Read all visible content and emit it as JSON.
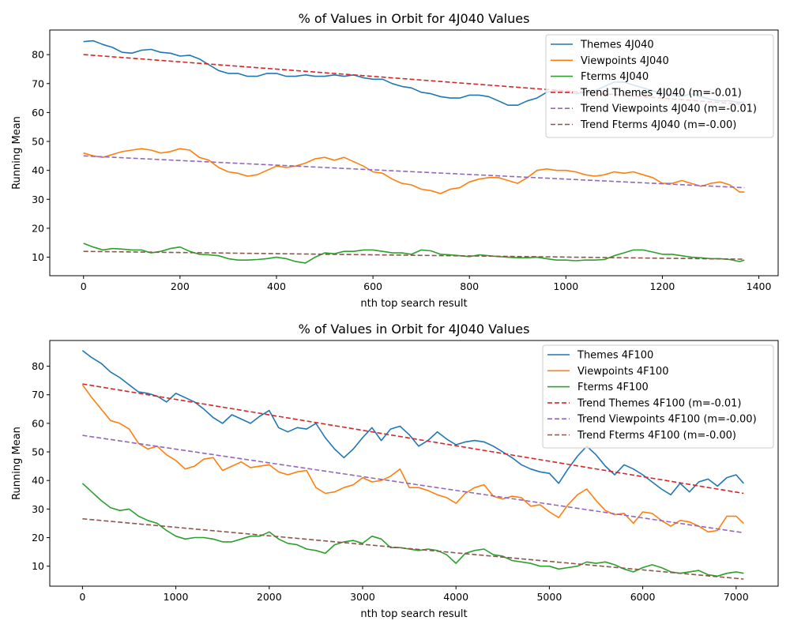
{
  "chart_data": [
    {
      "type": "line",
      "title": "% of Values in Orbit for 4J040 Values",
      "xlabel": "nth top search result",
      "ylabel": "Running Mean",
      "xlim": [
        -70,
        1440
      ],
      "ylim": [
        3.6,
        88.5
      ],
      "xticks": [
        0,
        200,
        400,
        600,
        800,
        1000,
        1200,
        1400
      ],
      "yticks": [
        10,
        20,
        30,
        40,
        50,
        60,
        70,
        80
      ],
      "grid": false,
      "legend_position": "top-right",
      "series": [
        {
          "name": "Themes 4J040",
          "color": "#1f77b4",
          "style": "solid",
          "x": [
            0,
            20,
            40,
            60,
            80,
            100,
            120,
            140,
            160,
            180,
            200,
            220,
            240,
            260,
            280,
            300,
            320,
            340,
            360,
            380,
            400,
            420,
            440,
            460,
            480,
            500,
            520,
            540,
            560,
            580,
            600,
            620,
            640,
            660,
            680,
            700,
            720,
            740,
            760,
            780,
            800,
            820,
            840,
            860,
            880,
            900,
            920,
            940,
            960,
            980,
            1000,
            1020,
            1040,
            1060,
            1080,
            1100,
            1120,
            1140,
            1160,
            1180,
            1200,
            1220,
            1240,
            1260,
            1280,
            1300,
            1320,
            1340,
            1360,
            1370
          ],
          "y": [
            84.5,
            84.8,
            83.5,
            82.5,
            80.8,
            80.5,
            81.5,
            81.8,
            80.8,
            80.5,
            79.5,
            79.8,
            78.5,
            76.5,
            74.5,
            73.5,
            73.5,
            72.5,
            72.5,
            73.5,
            73.5,
            72.5,
            72.5,
            73.0,
            72.5,
            72.5,
            73.0,
            72.5,
            73.0,
            72.0,
            71.5,
            71.5,
            70.0,
            69.0,
            68.5,
            67.0,
            66.5,
            65.5,
            65.0,
            65.0,
            66.0,
            66.0,
            65.5,
            64.0,
            62.5,
            62.5,
            64.0,
            65.0,
            67.0,
            67.5,
            67.0,
            66.5,
            67.0,
            67.5,
            69.0,
            70.5,
            70.5,
            69.5,
            68.5,
            67.5,
            66.5,
            66.0,
            65.5,
            66.5,
            65.5,
            64.5,
            64.0,
            64.0,
            63.5,
            63.5
          ]
        },
        {
          "name": "Viewpoints 4J040",
          "color": "#ff7f0e",
          "style": "solid",
          "x": [
            0,
            20,
            40,
            60,
            80,
            100,
            120,
            140,
            160,
            180,
            200,
            220,
            240,
            260,
            280,
            300,
            320,
            340,
            360,
            380,
            400,
            420,
            440,
            460,
            480,
            500,
            520,
            540,
            560,
            580,
            600,
            620,
            640,
            660,
            680,
            700,
            720,
            740,
            760,
            780,
            800,
            820,
            840,
            860,
            880,
            900,
            920,
            940,
            960,
            980,
            1000,
            1020,
            1040,
            1060,
            1080,
            1100,
            1120,
            1140,
            1160,
            1180,
            1200,
            1220,
            1240,
            1260,
            1280,
            1300,
            1320,
            1340,
            1360,
            1370
          ],
          "y": [
            46.0,
            45.0,
            44.5,
            45.5,
            46.5,
            47.0,
            47.5,
            47.0,
            46.0,
            46.5,
            47.5,
            47.0,
            44.5,
            43.5,
            41.0,
            39.5,
            39.0,
            38.0,
            38.5,
            40.0,
            41.5,
            41.0,
            41.5,
            42.5,
            44.0,
            44.5,
            43.5,
            44.5,
            43.0,
            41.5,
            39.5,
            39.0,
            37.0,
            35.5,
            35.0,
            33.5,
            33.0,
            32.0,
            33.5,
            34.0,
            36.0,
            37.0,
            37.5,
            37.5,
            36.5,
            35.5,
            37.5,
            40.0,
            40.5,
            40.0,
            40.0,
            39.5,
            38.5,
            38.0,
            38.5,
            39.5,
            39.0,
            39.5,
            38.5,
            37.5,
            35.5,
            35.5,
            36.5,
            35.5,
            34.5,
            35.5,
            36.0,
            35.0,
            32.5,
            32.5
          ]
        },
        {
          "name": "Fterms 4J040",
          "color": "#2ca02c",
          "style": "solid",
          "x": [
            0,
            20,
            40,
            60,
            80,
            100,
            120,
            140,
            160,
            180,
            200,
            220,
            240,
            260,
            280,
            300,
            320,
            340,
            360,
            380,
            400,
            420,
            440,
            460,
            480,
            500,
            520,
            540,
            560,
            580,
            600,
            620,
            640,
            660,
            680,
            700,
            720,
            740,
            760,
            780,
            800,
            820,
            840,
            860,
            880,
            900,
            920,
            940,
            960,
            980,
            1000,
            1020,
            1040,
            1060,
            1080,
            1100,
            1120,
            1140,
            1160,
            1180,
            1200,
            1220,
            1240,
            1260,
            1280,
            1300,
            1320,
            1340,
            1360,
            1370
          ],
          "y": [
            14.8,
            13.5,
            12.5,
            13.0,
            12.8,
            12.5,
            12.5,
            11.5,
            12.0,
            13.0,
            13.5,
            12.0,
            11.0,
            10.8,
            10.5,
            9.5,
            9.0,
            9.0,
            9.2,
            9.5,
            10.0,
            9.5,
            8.5,
            8.0,
            10.0,
            11.5,
            11.2,
            12.0,
            12.0,
            12.5,
            12.5,
            12.0,
            11.5,
            11.5,
            11.0,
            12.5,
            12.2,
            11.0,
            10.8,
            10.5,
            10.2,
            10.8,
            10.5,
            10.2,
            10.0,
            9.8,
            9.8,
            10.0,
            9.5,
            9.0,
            9.0,
            8.8,
            9.0,
            9.0,
            9.2,
            10.5,
            11.5,
            12.5,
            12.5,
            11.8,
            11.0,
            11.0,
            10.5,
            10.0,
            9.8,
            9.5,
            9.5,
            9.2,
            8.5,
            9.0
          ]
        },
        {
          "name": "Trend Themes 4J040 (m=-0.01)",
          "color": "#d62728",
          "style": "dashed",
          "x": [
            0,
            1370
          ],
          "y": [
            80.0,
            62.8
          ]
        },
        {
          "name": "Trend Viewpoints 4J040 (m=-0.01)",
          "color": "#9467bd",
          "style": "dashed",
          "x": [
            0,
            1370
          ],
          "y": [
            45.0,
            34.0
          ]
        },
        {
          "name": "Trend Fterms 4J040 (m=-0.00)",
          "color": "#8c564b",
          "style": "dashed",
          "x": [
            0,
            1370
          ],
          "y": [
            12.0,
            9.3
          ]
        }
      ]
    },
    {
      "type": "line",
      "title": "% of Values in Orbit for 4J040 Values",
      "xlabel": "nth top search result",
      "ylabel": "Running Mean",
      "xlim": [
        -350,
        7450
      ],
      "ylim": [
        3.0,
        89.0
      ],
      "xticks": [
        0,
        1000,
        2000,
        3000,
        4000,
        5000,
        6000,
        7000
      ],
      "yticks": [
        10,
        20,
        30,
        40,
        50,
        60,
        70,
        80
      ],
      "grid": false,
      "legend_position": "top-right",
      "series": [
        {
          "name": "Themes 4F100",
          "color": "#1f77b4",
          "style": "solid",
          "x": [
            0,
            100,
            200,
            300,
            400,
            500,
            600,
            700,
            800,
            900,
            1000,
            1100,
            1200,
            1300,
            1400,
            1500,
            1600,
            1700,
            1800,
            1900,
            2000,
            2100,
            2200,
            2300,
            2400,
            2500,
            2600,
            2700,
            2800,
            2900,
            3000,
            3100,
            3200,
            3300,
            3400,
            3500,
            3600,
            3700,
            3800,
            3900,
            4000,
            4100,
            4200,
            4300,
            4400,
            4500,
            4600,
            4700,
            4800,
            4900,
            5000,
            5100,
            5200,
            5300,
            5400,
            5500,
            5600,
            5700,
            5800,
            5900,
            6000,
            6100,
            6200,
            6300,
            6400,
            6500,
            6600,
            6700,
            6800,
            6900,
            7000,
            7080
          ],
          "y": [
            85.5,
            83.0,
            81.0,
            78.0,
            76.0,
            73.5,
            71.0,
            70.5,
            69.5,
            67.5,
            70.5,
            69.0,
            67.5,
            65.0,
            62.0,
            60.0,
            63.0,
            61.5,
            60.0,
            62.5,
            64.5,
            58.5,
            57.0,
            58.5,
            58.0,
            60.0,
            55.0,
            51.0,
            48.0,
            51.0,
            55.0,
            58.5,
            54.0,
            58.0,
            59.0,
            56.0,
            52.0,
            54.0,
            57.0,
            54.5,
            52.5,
            53.5,
            54.0,
            53.5,
            52.0,
            50.0,
            48.0,
            45.5,
            44.0,
            43.0,
            42.5,
            39.0,
            44.0,
            48.5,
            52.0,
            49.0,
            45.0,
            42.0,
            45.5,
            44.0,
            42.0,
            39.5,
            37.0,
            35.0,
            39.0,
            36.0,
            39.5,
            40.5,
            38.0,
            41.0,
            42.0,
            39.0
          ]
        },
        {
          "name": "Viewpoints 4F100",
          "color": "#ff7f0e",
          "style": "solid",
          "x": [
            0,
            100,
            200,
            300,
            400,
            500,
            600,
            700,
            800,
            900,
            1000,
            1100,
            1200,
            1300,
            1400,
            1500,
            1600,
            1700,
            1800,
            1900,
            2000,
            2100,
            2200,
            2300,
            2400,
            2500,
            2600,
            2700,
            2800,
            2900,
            3000,
            3100,
            3200,
            3300,
            3400,
            3500,
            3600,
            3700,
            3800,
            3900,
            4000,
            4100,
            4200,
            4300,
            4400,
            4500,
            4600,
            4700,
            4800,
            4900,
            5000,
            5100,
            5200,
            5300,
            5400,
            5500,
            5600,
            5700,
            5800,
            5900,
            6000,
            6100,
            6200,
            6300,
            6400,
            6500,
            6600,
            6700,
            6800,
            6900,
            7000,
            7080
          ],
          "y": [
            73.5,
            69.0,
            65.0,
            61.0,
            60.0,
            58.0,
            53.0,
            51.0,
            52.0,
            49.0,
            47.0,
            44.0,
            45.0,
            47.5,
            48.0,
            43.5,
            45.0,
            46.5,
            44.5,
            45.0,
            45.5,
            43.0,
            42.0,
            43.0,
            43.5,
            37.5,
            35.5,
            36.0,
            37.5,
            38.5,
            41.0,
            39.5,
            40.0,
            41.5,
            44.0,
            37.5,
            37.5,
            36.5,
            35.0,
            34.0,
            32.0,
            35.5,
            37.5,
            38.5,
            34.5,
            33.5,
            34.5,
            34.0,
            31.0,
            31.5,
            29.0,
            27.0,
            31.5,
            35.0,
            37.0,
            33.0,
            29.5,
            28.0,
            28.5,
            25.0,
            29.0,
            28.5,
            26.0,
            24.0,
            26.0,
            25.5,
            24.0,
            22.0,
            22.5,
            27.5,
            27.5,
            25.0
          ]
        },
        {
          "name": "Fterms 4F100",
          "color": "#2ca02c",
          "style": "solid",
          "x": [
            0,
            100,
            200,
            300,
            400,
            500,
            600,
            700,
            800,
            900,
            1000,
            1100,
            1200,
            1300,
            1400,
            1500,
            1600,
            1700,
            1800,
            1900,
            2000,
            2100,
            2200,
            2300,
            2400,
            2500,
            2600,
            2700,
            2800,
            2900,
            3000,
            3100,
            3200,
            3300,
            3400,
            3500,
            3600,
            3700,
            3800,
            3900,
            4000,
            4100,
            4200,
            4300,
            4400,
            4500,
            4600,
            4700,
            4800,
            4900,
            5000,
            5100,
            5200,
            5300,
            5400,
            5500,
            5600,
            5700,
            5800,
            5900,
            6000,
            6100,
            6200,
            6300,
            6400,
            6500,
            6600,
            6700,
            6800,
            6900,
            7000,
            7080
          ],
          "y": [
            39.0,
            36.0,
            33.0,
            30.5,
            29.5,
            30.0,
            27.5,
            26.0,
            25.0,
            22.5,
            20.5,
            19.5,
            20.0,
            20.0,
            19.5,
            18.5,
            18.5,
            19.5,
            20.5,
            20.5,
            22.0,
            19.5,
            18.0,
            17.5,
            16.0,
            15.5,
            14.5,
            17.5,
            18.5,
            19.0,
            18.0,
            20.5,
            19.5,
            16.5,
            16.5,
            16.0,
            15.5,
            16.0,
            15.5,
            14.0,
            11.0,
            14.5,
            15.5,
            16.0,
            14.0,
            13.5,
            12.0,
            11.5,
            11.0,
            10.0,
            10.0,
            9.0,
            9.5,
            10.0,
            11.5,
            11.0,
            11.5,
            10.5,
            9.0,
            8.0,
            9.5,
            10.5,
            9.5,
            8.0,
            7.5,
            8.0,
            8.5,
            7.0,
            6.5,
            7.5,
            8.0,
            7.5
          ]
        },
        {
          "name": "Trend Themes 4F100 (m=-0.01)",
          "color": "#d62728",
          "style": "dashed",
          "x": [
            0,
            7080
          ],
          "y": [
            73.8,
            35.5
          ]
        },
        {
          "name": "Trend Viewpoints 4F100 (m=-0.00)",
          "color": "#9467bd",
          "style": "dashed",
          "x": [
            0,
            7080
          ],
          "y": [
            55.8,
            21.7
          ]
        },
        {
          "name": "Trend Fterms 4F100 (m=-0.00)",
          "color": "#8c564b",
          "style": "dashed",
          "x": [
            0,
            7080
          ],
          "y": [
            26.6,
            5.5
          ]
        }
      ]
    }
  ]
}
